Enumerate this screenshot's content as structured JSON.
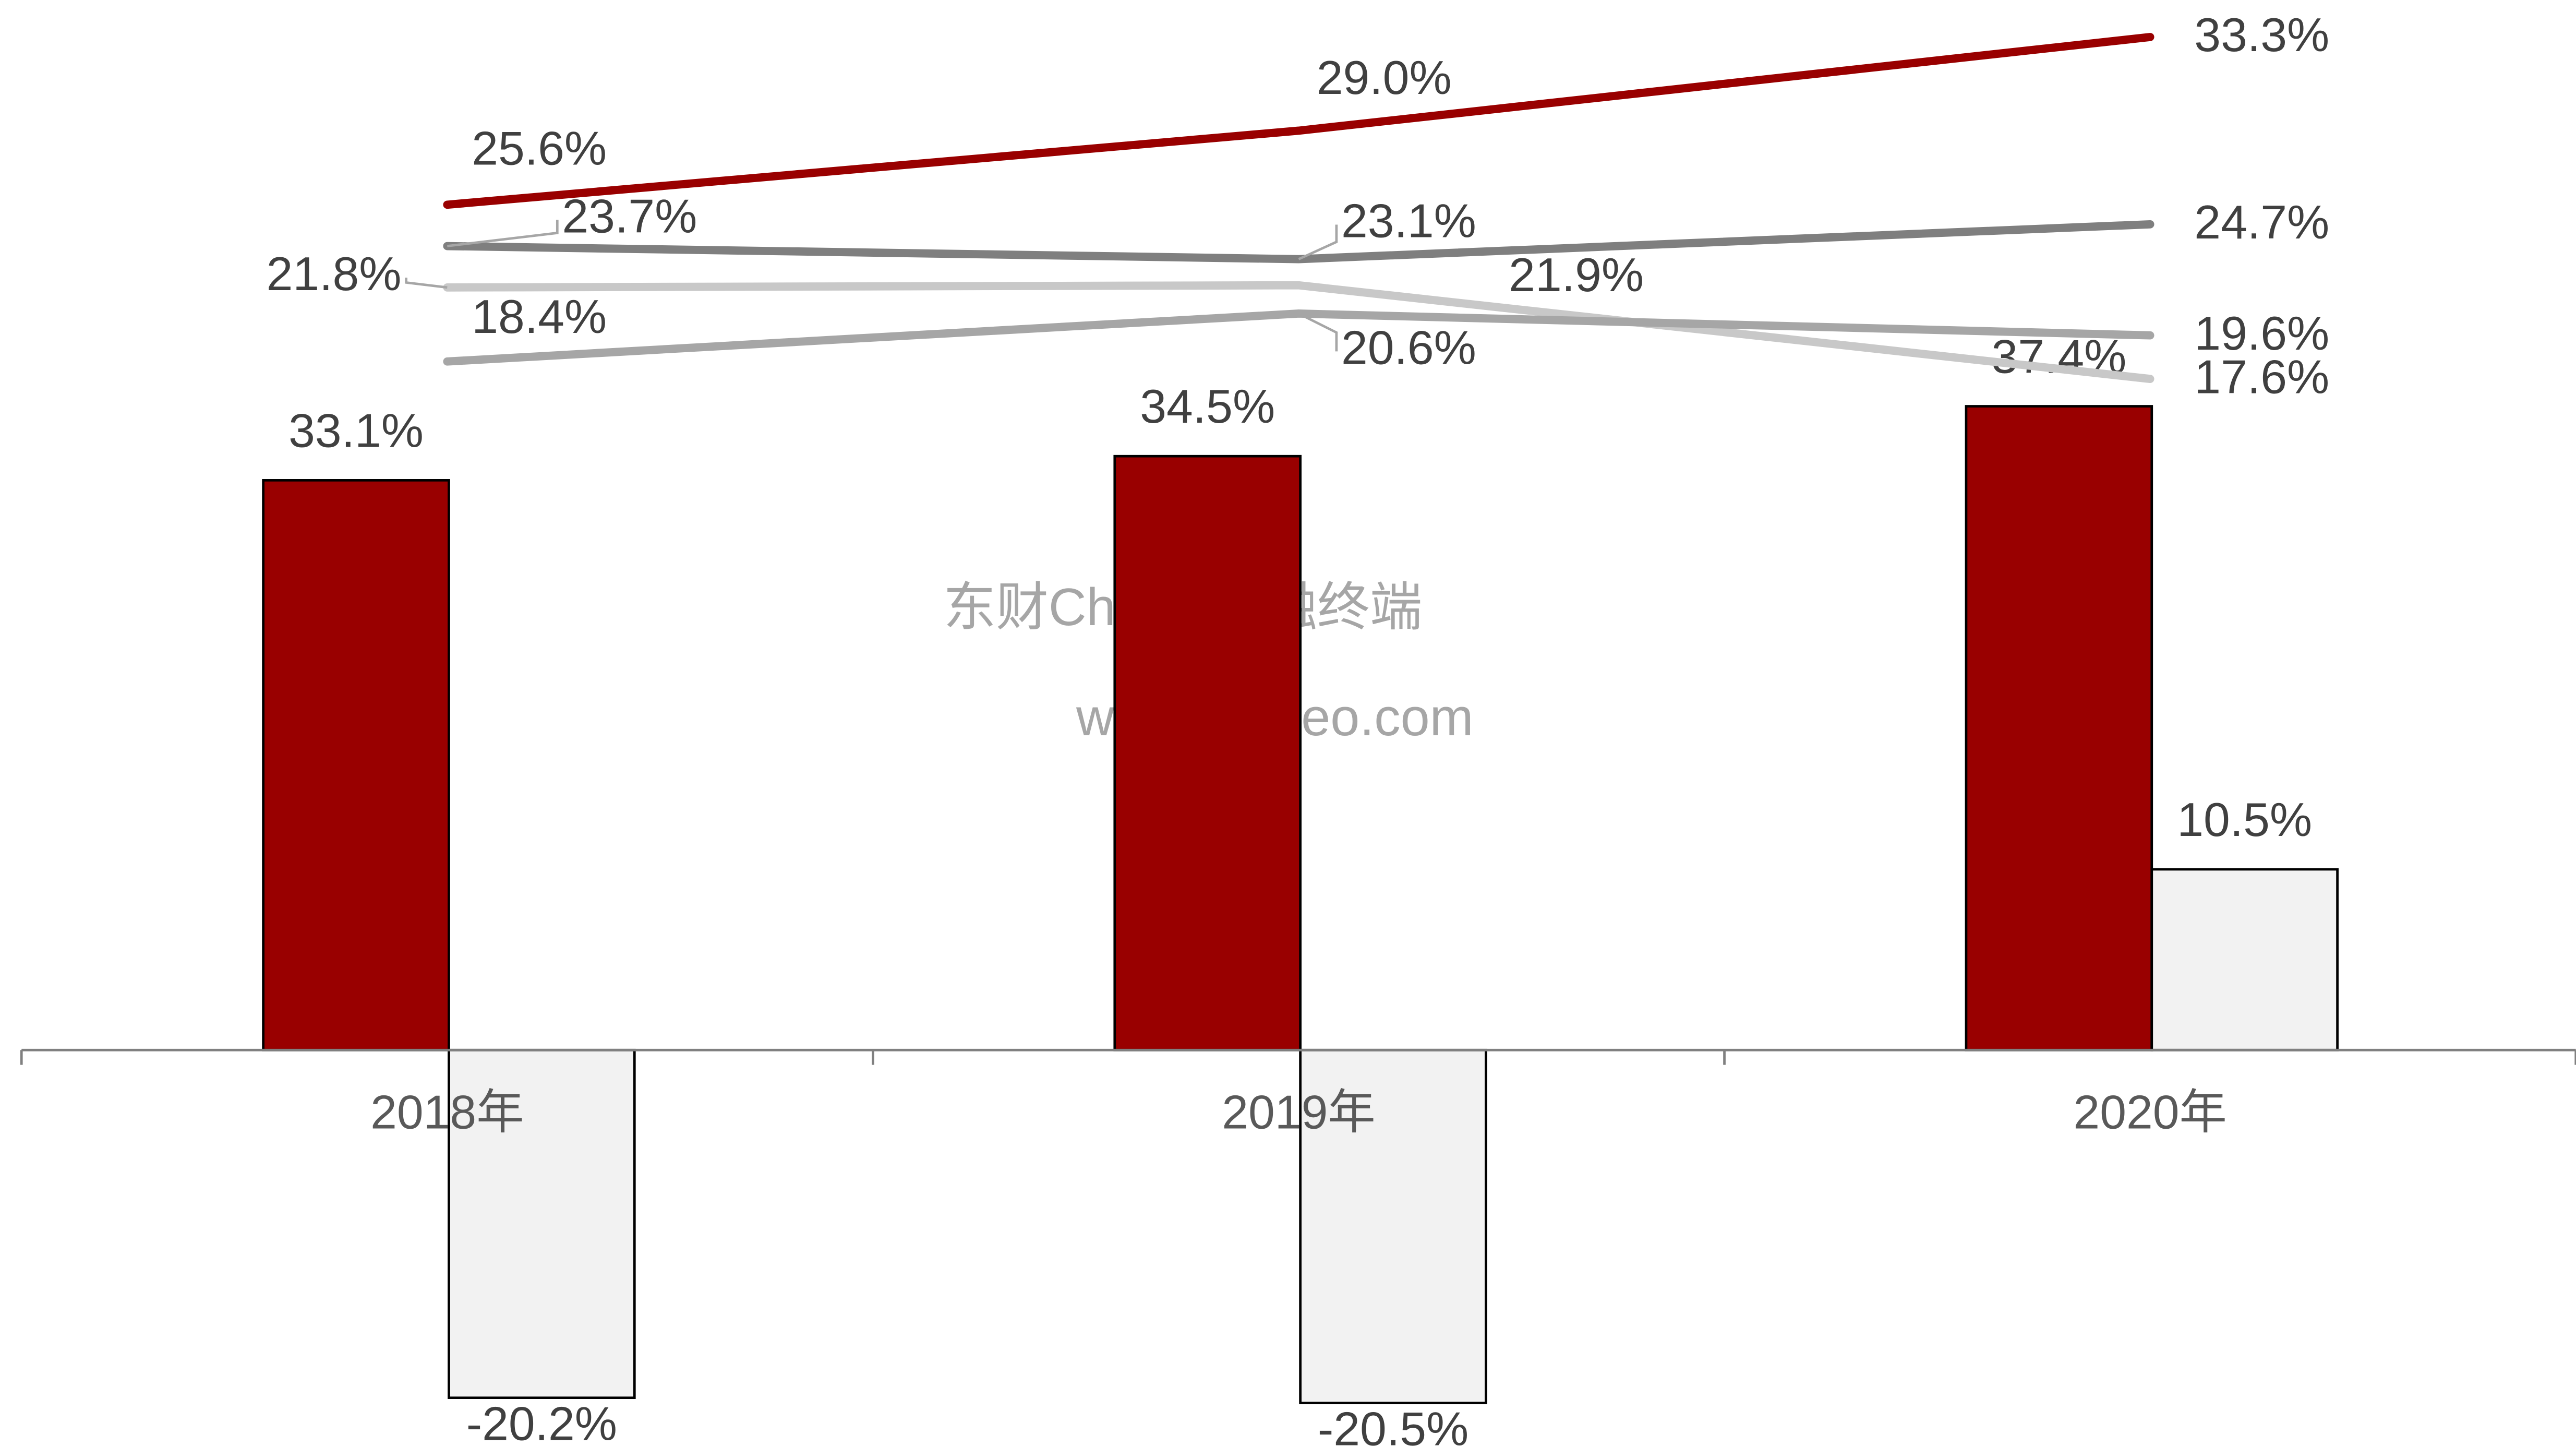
{
  "chart_data": {
    "type": "bar",
    "categories": [
      "2018年",
      "2019年",
      "2020年"
    ],
    "series": [
      {
        "color": "#990000",
        "values": [
          33.1,
          34.5,
          37.4
        ],
        "value_labels": [
          "33.1%",
          "34.5%",
          "37.4%"
        ]
      },
      {
        "color": "#f2f2f2",
        "values": [
          -20.2,
          -20.5,
          10.5
        ],
        "value_labels": [
          "-20.2%",
          "-20.5%",
          "10.5%"
        ]
      },
      {
        "type": "line",
        "axis": "y2",
        "color": "#990000",
        "values": [
          25.6,
          29.0,
          33.3
        ],
        "value_labels": [
          "25.6%",
          "29.0%",
          "33.3%"
        ]
      },
      {
        "type": "line",
        "axis": "y2",
        "color": "#7f7f7f",
        "values": [
          23.7,
          23.1,
          24.7
        ],
        "value_labels": [
          "23.7%",
          "23.1%",
          "24.7%"
        ]
      },
      {
        "type": "line",
        "axis": "y2",
        "color": "#c8c8c8",
        "values": [
          21.8,
          21.9,
          17.6
        ],
        "value_labels": [
          "21.8%",
          "21.9%",
          "17.6%"
        ]
      },
      {
        "type": "line",
        "axis": "y2",
        "color": "#a6a6a6",
        "values": [
          18.4,
          20.6,
          19.6
        ],
        "value_labels": [
          "18.4%",
          "20.6%",
          "19.6%"
        ]
      }
    ],
    "ylim": [
      -23,
      61
    ],
    "y2lim": [
      -31.4,
      35
    ],
    "watermark": [
      "东财Choice金融终端",
      "www.leadeo.com"
    ]
  }
}
